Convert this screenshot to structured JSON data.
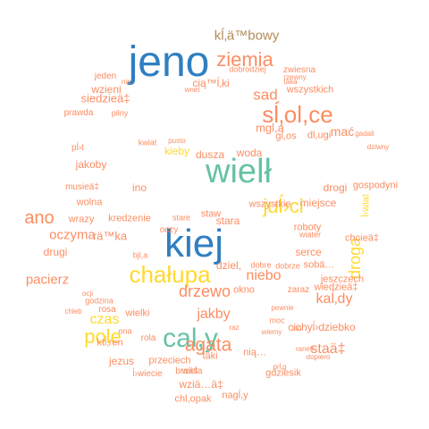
{
  "palette": {
    "blue": "#2f7fc1",
    "teal": "#66c2a5",
    "orange": "#fc8d62",
    "yellow": "#ffd92f",
    "brown": "#b38b5a",
    "red": "#e5554f"
  },
  "words": [
    "jeno",
    "kiej",
    "wielł",
    "chałupa",
    "cal,y",
    "ziemia",
    "kĺ‚ä™bowy",
    "sĺ‚ol,ce",
    "juĺ›ci",
    "agata",
    "drzewo",
    "pole",
    "sad",
    "ano",
    "droga",
    "jakby",
    "oczyma",
    "pacierz",
    "czas",
    "staä‡",
    "niebo",
    "cią™ĺ‚ki",
    "mgl,a",
    "kieby",
    "dusza",
    "woda",
    "ino",
    "jakoby",
    "wzieni",
    "siedzieä‡",
    "rä™ka",
    "drugi",
    "dziel,",
    "stara",
    "staw",
    "serce",
    "roboty",
    "jezus",
    "przeciech",
    "täki",
    "nią…",
    "wziä…ä‡",
    "chl,opak",
    "nagĺ,y",
    "wiedzieä‡",
    "kaĺ‚dy",
    "cichyĺ›dziebko",
    "miejsce",
    "drogi",
    "gospodyni",
    "wszystkich",
    "wszystkie",
    "okno",
    "sobä…",
    "moc",
    "zaraz",
    "jeszczech",
    "wiater",
    "gl,os",
    "dl,ugi",
    "mać",
    "jeden",
    "prawda",
    "wiela",
    "rola",
    "ktĺ‚ren",
    "ona",
    "wolna",
    "kredzenie",
    "oczy",
    "wrazy",
    "stare",
    "rosa",
    "bjl,a",
    "ĺ›wiat",
    "musieä‡",
    "dobre",
    "wielki",
    "braä‡",
    "ĺ›wiecie",
    "dziwny",
    "gadali",
    "rzewny",
    "zwiesna",
    "dobrodziej",
    "pilny",
    "nic",
    "wnet",
    "pusto",
    "kwiat",
    "stoi",
    "taka",
    "dobrze",
    "gdziesik",
    "wiemy",
    "pewnie",
    "raz",
    "chleb",
    "ocji",
    "pĺ›t",
    "godzina",
    "prĺ‚g",
    "dopiero",
    "ranek",
    "chcieä‡"
  ]
}
